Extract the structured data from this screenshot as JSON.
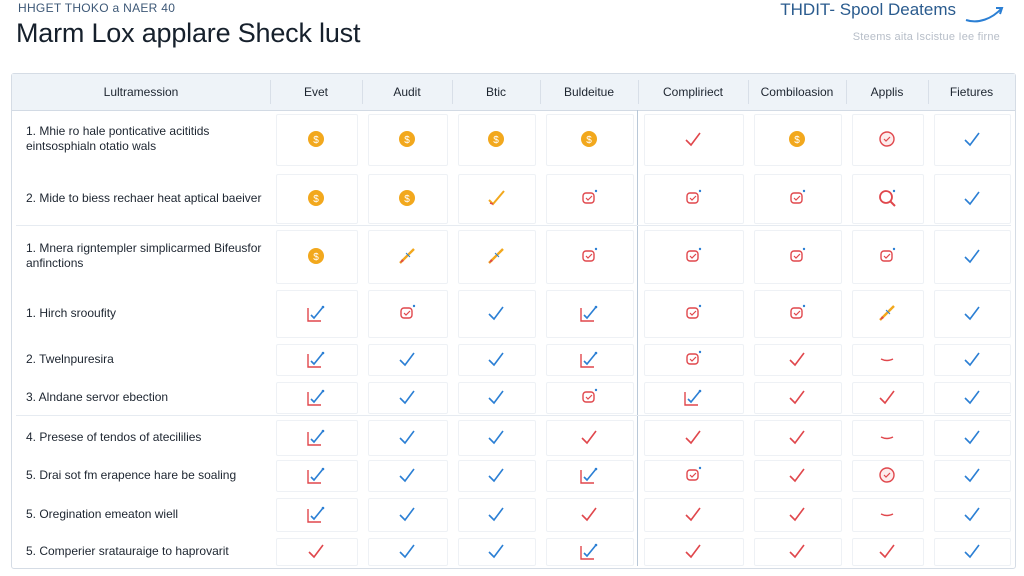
{
  "header": {
    "kicker": "HHGET THOKO a NAER 40",
    "title": "Marm Lox applare Sheck lust",
    "brand": "THDIT- Spool Deatems",
    "subtitle": "Steems aita Iscistue Iee firne"
  },
  "table": {
    "columns": [
      {
        "label": "Lultramession"
      },
      {
        "label": "Evet"
      },
      {
        "label": "Audit"
      },
      {
        "label": "Btic"
      },
      {
        "label": "Buldeitue"
      },
      {
        "label": "Compliriect"
      },
      {
        "label": "Combiloasion"
      },
      {
        "label": "Applis"
      },
      {
        "label": "Fietures"
      }
    ],
    "rows": [
      {
        "label": "1. Mhie ro hale ponticative acititids eintsosphialn otatio wals",
        "cells": [
          "coin",
          "coin",
          "coin",
          "coin",
          "redcheck",
          "coin",
          "redcircle",
          "check"
        ]
      },
      {
        "label": "2. Mide to biess rechaer heat aptical baeiver",
        "cells": [
          "coin",
          "coin",
          "pencheck",
          "redbox",
          "redbox",
          "redbox",
          "redcirclemag",
          "check"
        ]
      },
      {
        "label": "1. Mnera rigntempler simplicarmed Bifeusfor anfinctions",
        "cells": [
          "coin",
          "pencil",
          "pencil",
          "redbox",
          "redbox",
          "redbox",
          "redbox",
          "check"
        ]
      },
      {
        "label": "1. Hirch srooufity",
        "cells": [
          "boxcheck",
          "redbox",
          "check",
          "boxcheck",
          "redbox",
          "redbox",
          "pencil",
          "check"
        ]
      },
      {
        "label": "2. Twelnpuresira",
        "cells": [
          "boxcheck",
          "check",
          "check",
          "boxcheck",
          "redbox",
          "redcheck",
          "dash",
          "check"
        ]
      },
      {
        "label": "3. Alndane servor ebection",
        "cells": [
          "boxcheck",
          "check",
          "check",
          "redbox",
          "boxcheck",
          "redcheck",
          "redcheck",
          "check"
        ]
      },
      {
        "label": "4. Presese of tendos of atecililies",
        "cells": [
          "boxcheck",
          "check",
          "check",
          "redcheck",
          "redcheck",
          "redcheck",
          "dash",
          "check"
        ]
      },
      {
        "label": "5. Drai sot fm erapence hare be soaling",
        "cells": [
          "boxcheck",
          "check",
          "check",
          "boxcheck",
          "redbox",
          "redcheck",
          "redcircle",
          "check"
        ]
      },
      {
        "label": "5. Oregination emeaton wiell",
        "cells": [
          "boxcheck",
          "check",
          "check",
          "redcheck",
          "redcheck",
          "redcheck",
          "dash",
          "check"
        ]
      },
      {
        "label": "5. Comperier sratauraige to haprovarit",
        "cells": [
          "redcheck",
          "check",
          "check",
          "boxcheck",
          "redcheck",
          "redcheck",
          "redcheck",
          "check"
        ]
      }
    ]
  },
  "colors": {
    "coin": "#f2a81d",
    "red": "#e0474c",
    "blue": "#2b7fd4",
    "teal": "#2fa3a8"
  }
}
